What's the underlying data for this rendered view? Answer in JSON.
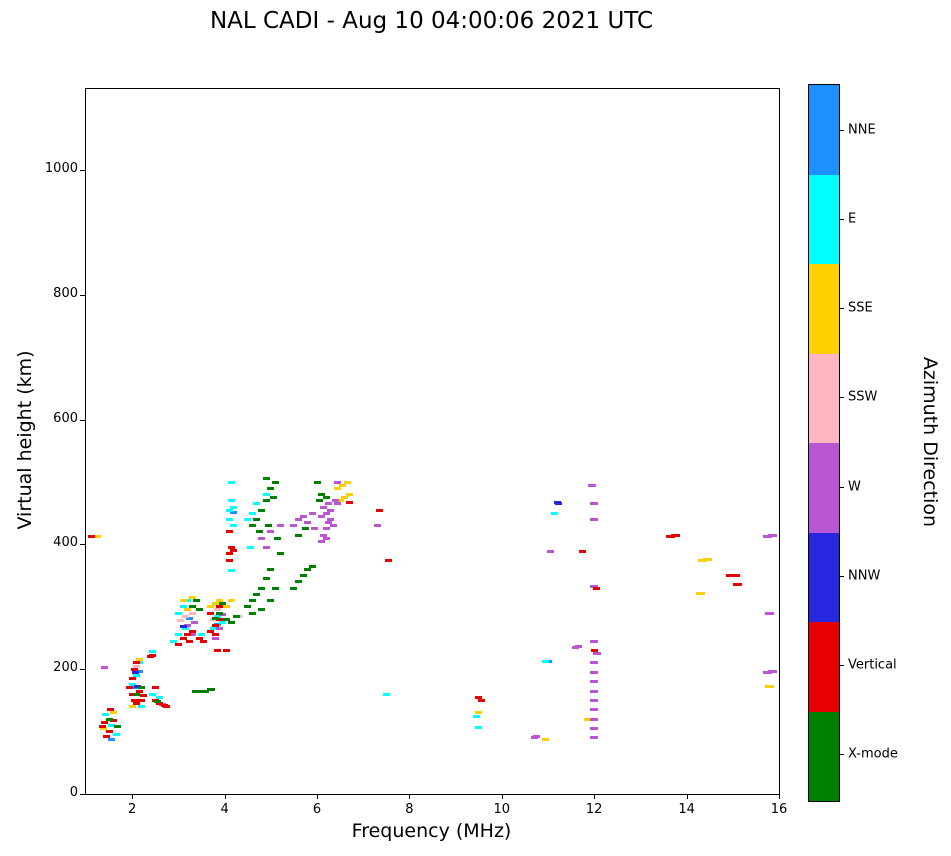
{
  "title": "NAL CADI - Aug 10 04:00:06 2021 UTC",
  "colorbar": {
    "label": "Azimuth Direction"
  },
  "chart_data": {
    "type": "scatter",
    "title": "NAL CADI - Aug 10 04:00:06 2021 UTC",
    "xlabel": "Frequency (MHz)",
    "ylabel": "Virtual height (km)",
    "xlim": [
      1,
      16
    ],
    "ylim": [
      0,
      1130
    ],
    "xticks": [
      2,
      4,
      6,
      8,
      10,
      12,
      14,
      16
    ],
    "yticks": [
      0,
      200,
      400,
      600,
      800,
      1000
    ],
    "grid": false,
    "marker": "horizontal-dash",
    "legend_position": "right-colorbar",
    "series": [
      {
        "name": "NNE",
        "color": "#1E90FF",
        "points": [
          [
            1.55,
            88
          ],
          [
            2.05,
            170
          ],
          [
            2.15,
            196
          ],
          [
            3.25,
            282
          ],
          [
            3.85,
            272
          ],
          [
            4.2,
            452
          ],
          [
            11.0,
            213
          ]
        ]
      },
      {
        "name": "E",
        "color": "#00FFFF",
        "points": [
          [
            1.42,
            128
          ],
          [
            1.55,
            110
          ],
          [
            1.65,
            95
          ],
          [
            2.0,
            175
          ],
          [
            2.1,
            190
          ],
          [
            2.15,
            210
          ],
          [
            2.2,
            140
          ],
          [
            2.45,
            228
          ],
          [
            2.45,
            160
          ],
          [
            2.6,
            155
          ],
          [
            2.9,
            245
          ],
          [
            3.0,
            255
          ],
          [
            3.0,
            290
          ],
          [
            3.1,
            300
          ],
          [
            3.15,
            265
          ],
          [
            3.2,
            310
          ],
          [
            3.5,
            255
          ],
          [
            3.75,
            265
          ],
          [
            3.85,
            285
          ],
          [
            3.95,
            275
          ],
          [
            4.1,
            440
          ],
          [
            4.1,
            455
          ],
          [
            4.15,
            358
          ],
          [
            4.15,
            470
          ],
          [
            4.15,
            500
          ],
          [
            4.2,
            430
          ],
          [
            4.2,
            460
          ],
          [
            4.5,
            440
          ],
          [
            4.55,
            395
          ],
          [
            4.6,
            450
          ],
          [
            4.7,
            465
          ],
          [
            4.9,
            480
          ],
          [
            7.5,
            160
          ],
          [
            9.45,
            125
          ],
          [
            9.5,
            107
          ],
          [
            10.95,
            212
          ],
          [
            11.15,
            450
          ]
        ]
      },
      {
        "name": "SSE",
        "color": "#FFD000",
        "points": [
          [
            1.25,
            412
          ],
          [
            1.38,
            105
          ],
          [
            1.6,
            130
          ],
          [
            2.0,
            140
          ],
          [
            2.15,
            215
          ],
          [
            3.1,
            310
          ],
          [
            3.2,
            295
          ],
          [
            3.3,
            315
          ],
          [
            3.7,
            300
          ],
          [
            3.8,
            305
          ],
          [
            3.9,
            310
          ],
          [
            4.05,
            300
          ],
          [
            4.15,
            310
          ],
          [
            6.45,
            490
          ],
          [
            6.5,
            470
          ],
          [
            6.55,
            495
          ],
          [
            6.6,
            475
          ],
          [
            6.65,
            500
          ],
          [
            6.7,
            480
          ],
          [
            9.5,
            130
          ],
          [
            10.95,
            88
          ],
          [
            11.85,
            120
          ],
          [
            14.3,
            322,
            9
          ],
          [
            14.35,
            375,
            9
          ],
          [
            14.45,
            376,
            9
          ],
          [
            15.8,
            172,
            9
          ]
        ]
      },
      {
        "name": "SSW",
        "color": "#FFB6C1",
        "points": [
          [
            2.1,
            205
          ],
          [
            3.05,
            278
          ],
          [
            3.15,
            285
          ],
          [
            3.3,
            290
          ],
          [
            3.75,
            280
          ],
          [
            3.85,
            295
          ],
          [
            4.3,
            285
          ]
        ]
      },
      {
        "name": "W",
        "color": "#BA55D3",
        "points": [
          [
            1.4,
            203
          ],
          [
            2.65,
            143
          ],
          [
            3.2,
            270
          ],
          [
            3.3,
            255
          ],
          [
            3.35,
            275
          ],
          [
            3.8,
            250
          ],
          [
            3.9,
            265
          ],
          [
            3.95,
            288
          ],
          [
            4.8,
            410
          ],
          [
            4.9,
            395
          ],
          [
            5.0,
            420
          ],
          [
            5.2,
            430
          ],
          [
            5.5,
            430
          ],
          [
            5.6,
            440
          ],
          [
            5.7,
            445
          ],
          [
            5.8,
            435
          ],
          [
            5.9,
            450
          ],
          [
            5.95,
            425
          ],
          [
            6.1,
            405
          ],
          [
            6.1,
            445
          ],
          [
            6.15,
            415
          ],
          [
            6.15,
            460
          ],
          [
            6.2,
            410
          ],
          [
            6.2,
            425
          ],
          [
            6.2,
            450
          ],
          [
            6.25,
            435
          ],
          [
            6.25,
            465
          ],
          [
            6.3,
            440
          ],
          [
            6.3,
            455
          ],
          [
            6.35,
            430
          ],
          [
            6.4,
            470
          ],
          [
            6.45,
            465
          ],
          [
            6.45,
            500
          ],
          [
            7.3,
            430
          ],
          [
            10.7,
            90
          ],
          [
            10.75,
            92
          ],
          [
            11.05,
            388
          ],
          [
            11.6,
            235
          ],
          [
            11.65,
            237
          ],
          [
            11.95,
            495,
            8
          ],
          [
            12.0,
            90,
            8
          ],
          [
            12.0,
            105,
            8
          ],
          [
            12.0,
            120,
            8
          ],
          [
            12.0,
            135,
            8
          ],
          [
            12.0,
            150,
            8
          ],
          [
            12.0,
            165,
            8
          ],
          [
            12.0,
            180,
            8
          ],
          [
            12.0,
            195,
            8
          ],
          [
            12.0,
            210,
            8
          ],
          [
            12.05,
            225,
            8
          ],
          [
            12.0,
            245,
            8
          ],
          [
            12.0,
            332,
            8
          ],
          [
            12.0,
            440,
            8
          ],
          [
            12.0,
            465,
            8
          ],
          [
            15.75,
            413,
            9
          ],
          [
            15.85,
            414,
            9
          ],
          [
            15.8,
            290,
            9
          ],
          [
            15.75,
            195,
            9
          ],
          [
            15.85,
            196,
            9
          ]
        ]
      },
      {
        "name": "NNW",
        "color": "#2828E0",
        "points": [
          [
            2.08,
            195
          ],
          [
            2.12,
            172
          ],
          [
            3.1,
            268
          ],
          [
            11.2,
            468
          ],
          [
            11.22,
            466
          ]
        ]
      },
      {
        "name": "Vertical",
        "color": "#E80000",
        "points": [
          [
            1.12,
            412
          ],
          [
            1.35,
            108
          ],
          [
            1.4,
            115
          ],
          [
            1.45,
            92
          ],
          [
            1.5,
            100
          ],
          [
            1.52,
            135
          ],
          [
            1.6,
            118
          ],
          [
            1.95,
            170
          ],
          [
            2.0,
            160
          ],
          [
            2.0,
            185
          ],
          [
            2.05,
            150
          ],
          [
            2.05,
            200
          ],
          [
            2.1,
            145
          ],
          [
            2.1,
            210
          ],
          [
            2.15,
            165
          ],
          [
            2.2,
            150
          ],
          [
            2.25,
            158
          ],
          [
            2.4,
            220
          ],
          [
            2.45,
            222
          ],
          [
            2.5,
            150
          ],
          [
            2.5,
            170
          ],
          [
            2.6,
            145
          ],
          [
            2.7,
            142
          ],
          [
            2.75,
            140
          ],
          [
            3.0,
            240
          ],
          [
            3.1,
            250
          ],
          [
            3.2,
            255
          ],
          [
            3.25,
            245
          ],
          [
            3.3,
            260
          ],
          [
            3.45,
            250
          ],
          [
            3.55,
            245
          ],
          [
            3.7,
            260
          ],
          [
            3.7,
            290
          ],
          [
            3.8,
            255
          ],
          [
            3.8,
            270
          ],
          [
            3.85,
            230
          ],
          [
            3.9,
            280
          ],
          [
            3.9,
            300
          ],
          [
            4.05,
            230
          ],
          [
            4.1,
            375
          ],
          [
            4.1,
            385
          ],
          [
            4.1,
            420
          ],
          [
            4.15,
            395
          ],
          [
            4.2,
            390
          ],
          [
            6.7,
            468
          ],
          [
            7.35,
            455
          ],
          [
            7.55,
            375
          ],
          [
            9.5,
            155
          ],
          [
            9.55,
            150
          ],
          [
            11.75,
            388
          ],
          [
            12.0,
            230
          ],
          [
            12.05,
            330
          ],
          [
            13.65,
            413,
            9
          ],
          [
            13.75,
            414,
            9
          ],
          [
            14.95,
            350,
            9
          ],
          [
            15.05,
            351,
            9
          ],
          [
            15.1,
            335,
            9
          ]
        ]
      },
      {
        "name": "X-mode",
        "color": "#008000",
        "points": [
          [
            1.5,
            120
          ],
          [
            1.68,
            108
          ],
          [
            2.1,
            160
          ],
          [
            2.2,
            170
          ],
          [
            2.55,
            148
          ],
          [
            3.3,
            300
          ],
          [
            3.4,
            310
          ],
          [
            3.45,
            295
          ],
          [
            3.4,
            165,
            10
          ],
          [
            3.55,
            165,
            10
          ],
          [
            3.7,
            168,
            8
          ],
          [
            3.8,
            282
          ],
          [
            3.9,
            290
          ],
          [
            3.95,
            305
          ],
          [
            4.05,
            280
          ],
          [
            4.15,
            275
          ],
          [
            4.25,
            285
          ],
          [
            4.5,
            300
          ],
          [
            4.6,
            290
          ],
          [
            4.6,
            310
          ],
          [
            4.7,
            320
          ],
          [
            4.8,
            295
          ],
          [
            4.8,
            330
          ],
          [
            4.9,
            345
          ],
          [
            5.0,
            310
          ],
          [
            5.0,
            360
          ],
          [
            5.1,
            330
          ],
          [
            4.6,
            430
          ],
          [
            4.7,
            440
          ],
          [
            4.75,
            420
          ],
          [
            4.8,
            455
          ],
          [
            4.9,
            470
          ],
          [
            4.9,
            505
          ],
          [
            4.95,
            430
          ],
          [
            5.0,
            490
          ],
          [
            5.05,
            475
          ],
          [
            5.1,
            500
          ],
          [
            5.15,
            410
          ],
          [
            5.2,
            385
          ],
          [
            5.5,
            330
          ],
          [
            5.6,
            340
          ],
          [
            5.6,
            415
          ],
          [
            5.7,
            350
          ],
          [
            5.75,
            425
          ],
          [
            5.8,
            360
          ],
          [
            5.9,
            365
          ],
          [
            6.0,
            500
          ],
          [
            6.05,
            470
          ],
          [
            6.1,
            480
          ],
          [
            6.2,
            475
          ]
        ]
      }
    ]
  }
}
